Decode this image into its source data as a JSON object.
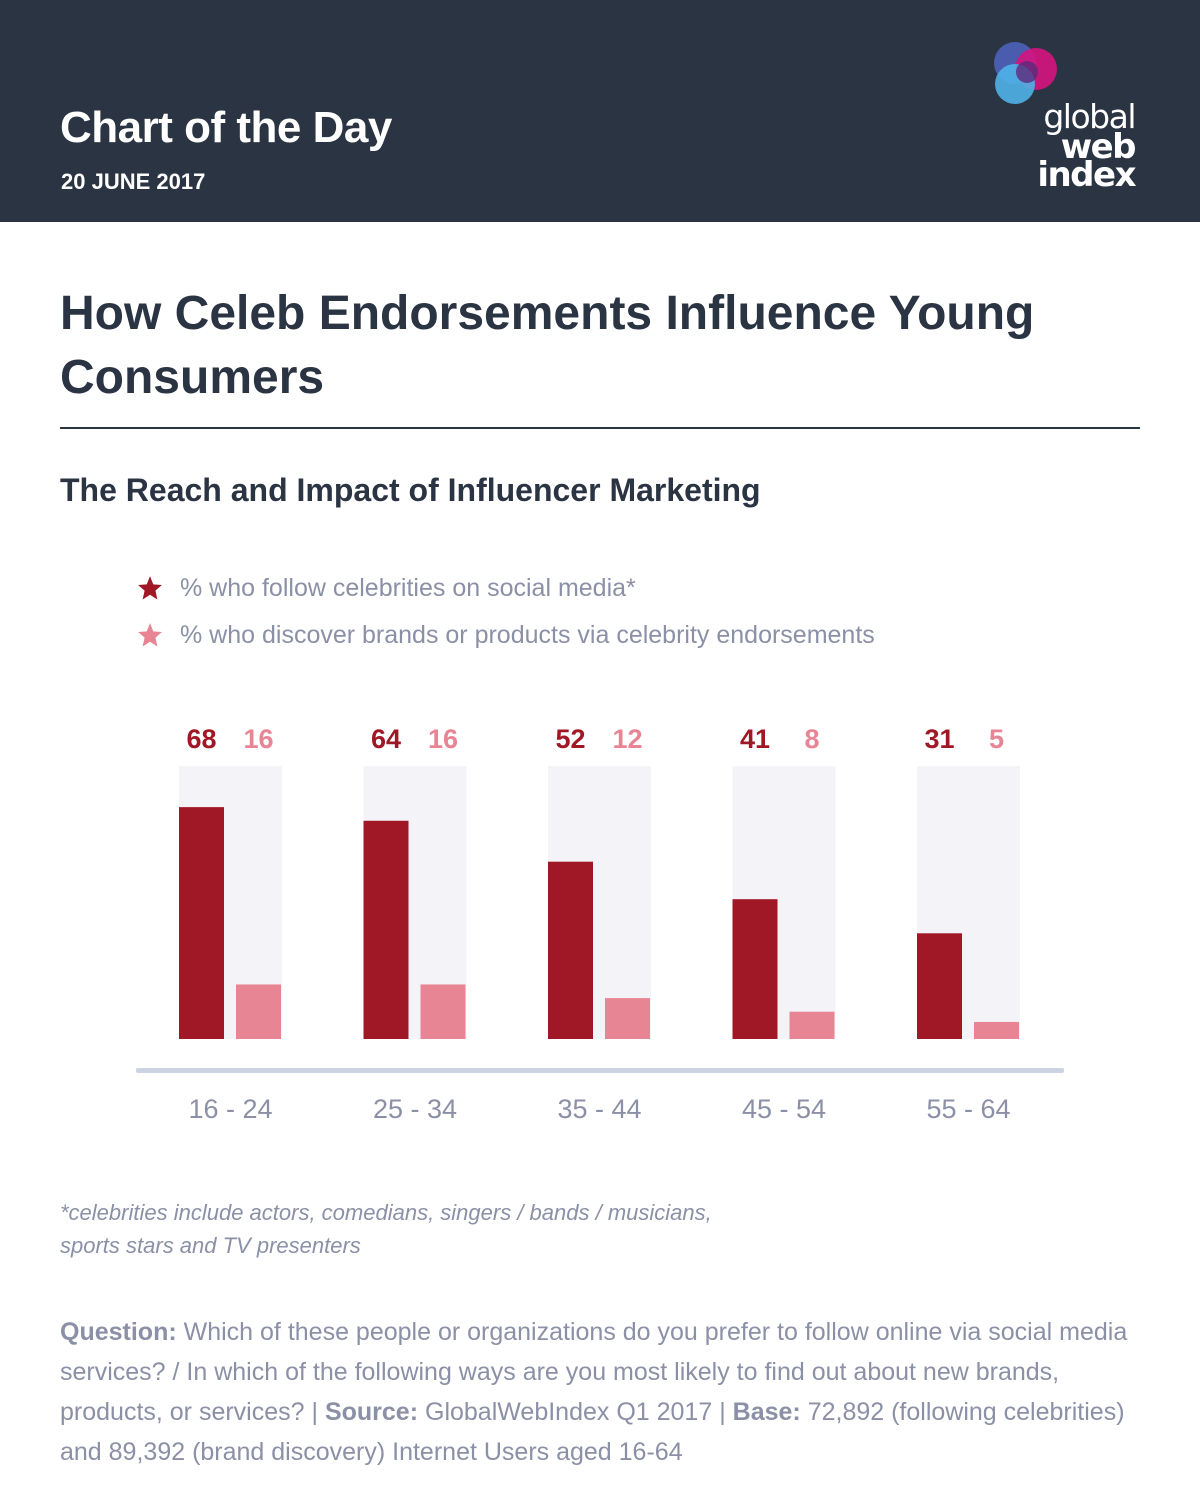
{
  "header": {
    "title": "Chart of the Day",
    "date": "20 JUNE 2017",
    "logo": {
      "line1": "global",
      "line2": "web",
      "line3": "index"
    }
  },
  "main_title": "How Celeb Endorsements Influence Young Consumers",
  "subtitle": "The Reach and Impact of Influencer Marketing",
  "legend": [
    {
      "label": "% who follow celebrities on social media*",
      "icon": "star-icon",
      "color": "#a01825"
    },
    {
      "label": "% who discover brands or products via celebrity endorsements",
      "icon": "star-icon",
      "color": "#e88595"
    }
  ],
  "colors": {
    "header_bg": "#2b3443",
    "series_follow": "#a01825",
    "series_discover": "#e88595",
    "track": "#f4f4f8",
    "axis": "#ccd3e3",
    "muted_text": "#8b90a6"
  },
  "chart_data": {
    "type": "bar",
    "title": "The Reach and Impact of Influencer Marketing",
    "categories": [
      "16 - 24",
      "25 - 34",
      "35 - 44",
      "45 - 54",
      "55 - 64"
    ],
    "series": [
      {
        "name": "% who follow celebrities on social media*",
        "values": [
          68,
          64,
          52,
          41,
          31
        ]
      },
      {
        "name": "% who discover brands or products via celebrity endorsements",
        "values": [
          16,
          16,
          12,
          8,
          5
        ]
      }
    ],
    "ylim": [
      0,
      80
    ],
    "xlabel": "",
    "ylabel": "",
    "grid": false
  },
  "footnote": {
    "line1": "*celebrities include actors, comedians, singers / bands / musicians,",
    "line2": "sports stars and TV presenters"
  },
  "question": {
    "question_label": "Question:",
    "question_text": "Which of these people or organizations do you prefer to follow online via social media services? / In which of the following ways are you most likely to find out about new brands, products, or services?",
    "separator": "|",
    "source_label": "Source:",
    "source_text": "GlobalWebIndex Q1 2017",
    "base_label": "Base:",
    "base_text": "72,892 (following celebrities) and 89,392 (brand discovery) Internet Users aged 16-64"
  }
}
